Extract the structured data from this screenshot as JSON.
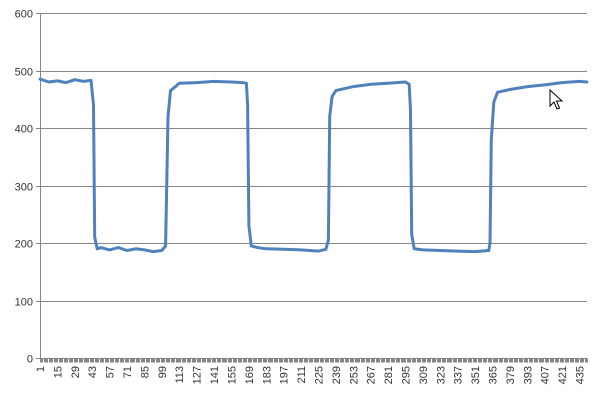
{
  "chart_data": {
    "type": "line",
    "title": "",
    "xlabel": "",
    "ylabel": "",
    "ylim": [
      0,
      600
    ],
    "yticks": [
      0,
      100,
      200,
      300,
      400,
      500,
      600
    ],
    "xlim": [
      1,
      441
    ],
    "xtick_labels": [
      "1",
      "15",
      "29",
      "43",
      "57",
      "71",
      "85",
      "99",
      "113",
      "127",
      "141",
      "155",
      "169",
      "183",
      "197",
      "211",
      "225",
      "239",
      "253",
      "267",
      "281",
      "295",
      "309",
      "323",
      "337",
      "351",
      "365",
      "379",
      "393",
      "407",
      "421",
      "435"
    ],
    "grid": "horizontal",
    "legend": "none",
    "series": [
      {
        "color": "#4f81bd",
        "points": [
          [
            1,
            485
          ],
          [
            8,
            480
          ],
          [
            15,
            482
          ],
          [
            22,
            479
          ],
          [
            29,
            484
          ],
          [
            36,
            481
          ],
          [
            42,
            483
          ],
          [
            44,
            440
          ],
          [
            45,
            210
          ],
          [
            47,
            190
          ],
          [
            50,
            192
          ],
          [
            57,
            188
          ],
          [
            64,
            192
          ],
          [
            71,
            187
          ],
          [
            78,
            190
          ],
          [
            85,
            188
          ],
          [
            92,
            185
          ],
          [
            99,
            187
          ],
          [
            102,
            195
          ],
          [
            104,
            420
          ],
          [
            106,
            465
          ],
          [
            110,
            472
          ],
          [
            113,
            478
          ],
          [
            127,
            479
          ],
          [
            141,
            481
          ],
          [
            155,
            480
          ],
          [
            164,
            479
          ],
          [
            167,
            478
          ],
          [
            168,
            440
          ],
          [
            169,
            230
          ],
          [
            171,
            195
          ],
          [
            176,
            192
          ],
          [
            183,
            190
          ],
          [
            197,
            189
          ],
          [
            211,
            188
          ],
          [
            225,
            186
          ],
          [
            231,
            189
          ],
          [
            233,
            205
          ],
          [
            234,
            420
          ],
          [
            236,
            455
          ],
          [
            239,
            465
          ],
          [
            253,
            472
          ],
          [
            267,
            476
          ],
          [
            281,
            478
          ],
          [
            295,
            480
          ],
          [
            298,
            476
          ],
          [
            299,
            430
          ],
          [
            300,
            215
          ],
          [
            302,
            190
          ],
          [
            309,
            188
          ],
          [
            323,
            187
          ],
          [
            337,
            186
          ],
          [
            351,
            185
          ],
          [
            362,
            187
          ],
          [
            363,
            200
          ],
          [
            364,
            380
          ],
          [
            366,
            445
          ],
          [
            369,
            462
          ],
          [
            379,
            467
          ],
          [
            393,
            472
          ],
          [
            407,
            475
          ],
          [
            421,
            479
          ],
          [
            435,
            481
          ],
          [
            441,
            480
          ]
        ]
      }
    ]
  }
}
